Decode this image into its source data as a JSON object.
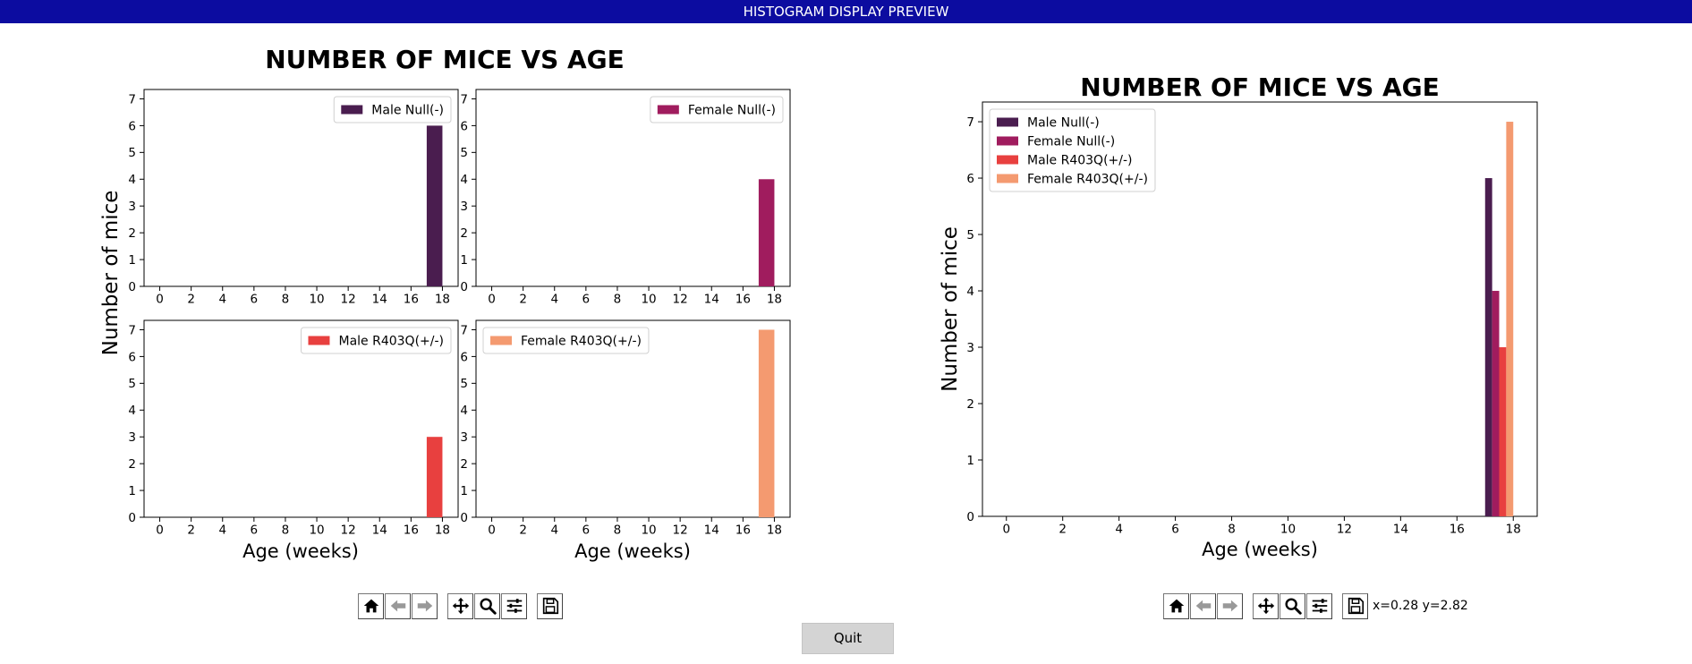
{
  "window": {
    "title": "HISTOGRAM DISPLAY PREVIEW"
  },
  "colors": {
    "male_null": "#4a1d4f",
    "female_null": "#a01c5e",
    "male_r403q": "#e8403f",
    "female_r403q": "#f49a70"
  },
  "left_figure": {
    "title": "NUMBER OF MICE VS AGE",
    "ylabel": "Number of mice",
    "xlabel": "Age (weeks)"
  },
  "right_figure": {
    "title": "NUMBER OF MICE VS AGE",
    "ylabel": "Number of mice",
    "xlabel": "Age (weeks)"
  },
  "chart_data": [
    {
      "type": "bar",
      "title": "",
      "legend": "Male Null(-)",
      "legend_position": "top-right",
      "color": "#4a1d4f",
      "x_ticks": [
        0,
        2,
        4,
        6,
        8,
        10,
        12,
        14,
        16,
        18
      ],
      "y_ticks": [
        0,
        1,
        2,
        3,
        4,
        5,
        6,
        7
      ],
      "xlim": [
        -1,
        19
      ],
      "ylim": [
        0,
        7.35
      ],
      "bins": [
        {
          "x0": 17,
          "x1": 18,
          "value": 6
        }
      ]
    },
    {
      "type": "bar",
      "title": "",
      "legend": "Female Null(-)",
      "legend_position": "top-right",
      "color": "#a01c5e",
      "x_ticks": [
        0,
        2,
        4,
        6,
        8,
        10,
        12,
        14,
        16,
        18
      ],
      "y_ticks": [
        0,
        1,
        2,
        3,
        4,
        5,
        6,
        7
      ],
      "xlim": [
        -1,
        19
      ],
      "ylim": [
        0,
        7.35
      ],
      "bins": [
        {
          "x0": 17,
          "x1": 18,
          "value": 4
        }
      ]
    },
    {
      "type": "bar",
      "title": "",
      "legend": "Male R403Q(+/-)",
      "legend_position": "top-right",
      "color": "#e8403f",
      "x_ticks": [
        0,
        2,
        4,
        6,
        8,
        10,
        12,
        14,
        16,
        18
      ],
      "y_ticks": [
        0,
        1,
        2,
        3,
        4,
        5,
        6,
        7
      ],
      "xlim": [
        -1,
        19
      ],
      "ylim": [
        0,
        7.35
      ],
      "bins": [
        {
          "x0": 17,
          "x1": 18,
          "value": 3
        }
      ]
    },
    {
      "type": "bar",
      "title": "",
      "legend": "Female R403Q(+/-)",
      "legend_position": "top-left",
      "color": "#f49a70",
      "x_ticks": [
        0,
        2,
        4,
        6,
        8,
        10,
        12,
        14,
        16,
        18
      ],
      "y_ticks": [
        0,
        1,
        2,
        3,
        4,
        5,
        6,
        7
      ],
      "xlim": [
        -1,
        19
      ],
      "ylim": [
        0,
        7.35
      ],
      "bins": [
        {
          "x0": 17,
          "x1": 18,
          "value": 7
        }
      ]
    },
    {
      "type": "bar",
      "title": "NUMBER OF MICE VS AGE",
      "xlabel": "Age (weeks)",
      "ylabel": "Number of mice",
      "legend_position": "top-left",
      "x_ticks": [
        0,
        2,
        4,
        6,
        8,
        10,
        12,
        14,
        16,
        18
      ],
      "y_ticks": [
        0,
        1,
        2,
        3,
        4,
        5,
        6,
        7
      ],
      "xlim": [
        -0.85,
        18.85
      ],
      "ylim": [
        0,
        7.35
      ],
      "bin_range": [
        17,
        18
      ],
      "series": [
        {
          "name": "Male Null(-)",
          "color": "#4a1d4f",
          "value": 6
        },
        {
          "name": "Female Null(-)",
          "color": "#a01c5e",
          "value": 4
        },
        {
          "name": "Male R403Q(+/-)",
          "color": "#e8403f",
          "value": 3
        },
        {
          "name": "Female R403Q(+/-)",
          "color": "#f49a70",
          "value": 7
        }
      ]
    }
  ],
  "toolbar": {
    "coords": "x=0.28 y=2.82"
  },
  "quit_label": "Quit"
}
